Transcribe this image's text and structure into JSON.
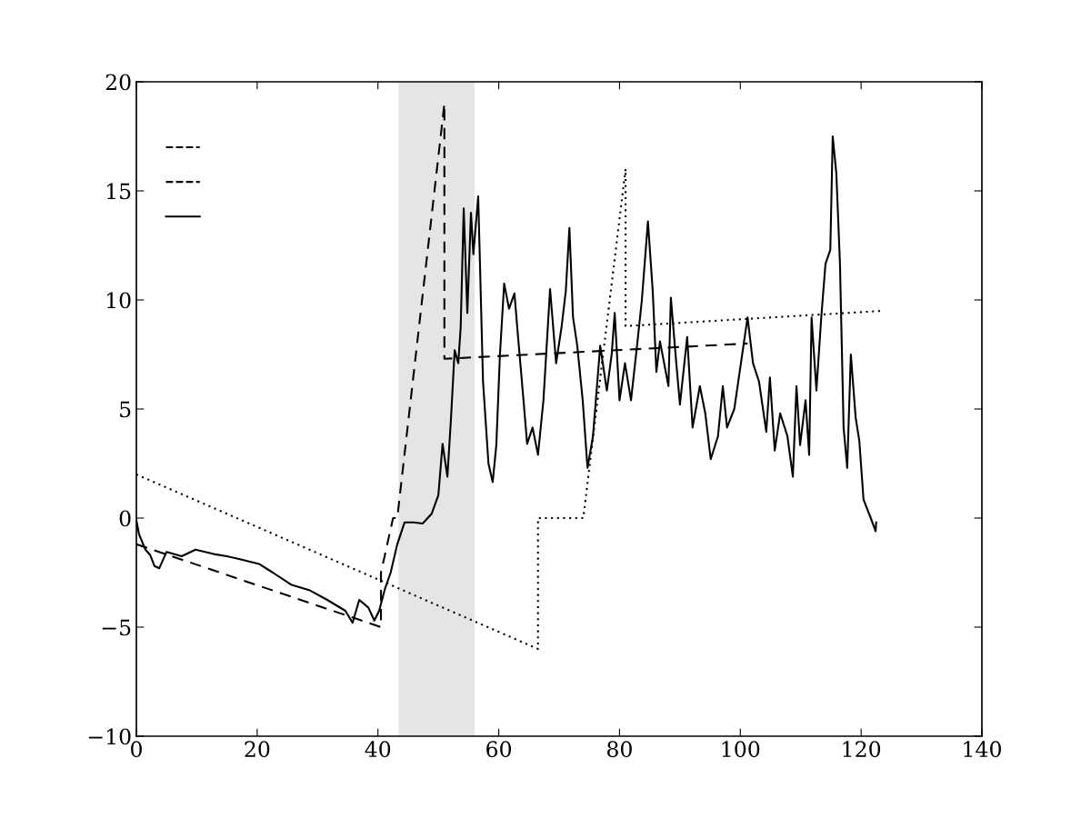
{
  "chart_data": {
    "type": "line",
    "xlim": [
      0,
      140
    ],
    "ylim": [
      -10,
      20
    ],
    "xticks": [
      0,
      20,
      40,
      60,
      80,
      100,
      120,
      140
    ],
    "yticks": [
      {
        "value": -10,
        "label": "−10"
      },
      {
        "value": -5,
        "label": "−5"
      },
      0,
      5,
      10,
      15,
      20
    ],
    "grid": false,
    "bands": [
      {
        "axis": "x",
        "from": 43.4,
        "to": 56.0,
        "color": "#e5e5e5"
      }
    ],
    "series": [
      {
        "color": "#000000",
        "line_style": "dashed",
        "x": [
          0,
          40.5,
          40.5,
          42.5,
          43.2,
          51.0,
          51.0,
          101.2
        ],
        "values": [
          -1.2,
          -5.0,
          -2.5,
          0,
          0,
          19.0,
          7.3,
          8.0
        ]
      },
      {
        "color": "#000000",
        "line_style": "dotted",
        "x": [
          0,
          66.5,
          66.5,
          74.0,
          81.0,
          81.0,
          123.5
        ],
        "values": [
          2.0,
          -6.0,
          0,
          0,
          16.0,
          8.8,
          9.5
        ]
      },
      {
        "color": "#000000",
        "line_style": "solid",
        "x": [
          0,
          0.45,
          1.5,
          2.3,
          3.0,
          3.8,
          5.0,
          7.5,
          9.8,
          12.8,
          15,
          17.3,
          20.3,
          22.6,
          25.6,
          28.6,
          31.6,
          34.6,
          35.8,
          36.9,
          38.4,
          39.4,
          40.2,
          41.1,
          42.1,
          43.2,
          44.4,
          45.9,
          47.4,
          48.9,
          50,
          50.7,
          51.5,
          52.1,
          52.7,
          53.3,
          53.7,
          54.2,
          54.8,
          55.4,
          55.8,
          56.6,
          57.4,
          58.3,
          59,
          59.6,
          60.2,
          60.9,
          61.7,
          62.6,
          63.2,
          64.1,
          64.7,
          65.6,
          66.5,
          67.4,
          68.5,
          69.5,
          70.4,
          71.1,
          71.7,
          72.3,
          73.0,
          73.9,
          74.7,
          75.6,
          76.8,
          77.9,
          78.7,
          79.2,
          80,
          80.9,
          81.9,
          82.9,
          83.7,
          84.7,
          85.5,
          86.1,
          86.7,
          88.1,
          88.5,
          89.4,
          90,
          91.2,
          92.1,
          93.3,
          94.2,
          95.1,
          96.3,
          97.1,
          97.8,
          99,
          100.1,
          101.2,
          102.1,
          103.1,
          104.3,
          104.9,
          105.7,
          106.6,
          107.8,
          108.7,
          109.3,
          109.9,
          110.8,
          111.4,
          111.8,
          112.6,
          113.4,
          114.1,
          114.9,
          115.3,
          115.9,
          116.5,
          117.1,
          117.7,
          118.3,
          119.1,
          119.7,
          120.4,
          121.6,
          122.4,
          122.5
        ],
        "values": [
          -0.1,
          -0.75,
          -1.45,
          -1.7,
          -2.2,
          -2.3,
          -1.55,
          -1.75,
          -1.45,
          -1.65,
          -1.75,
          -1.9,
          -2.1,
          -2.5,
          -3.05,
          -3.3,
          -3.75,
          -4.25,
          -4.8,
          -3.75,
          -4.1,
          -4.7,
          -4.25,
          -3.3,
          -2.5,
          -1.2,
          -0.2,
          -0.2,
          -0.25,
          0.2,
          1.05,
          3.4,
          1.9,
          4.6,
          7.7,
          7.1,
          8.75,
          14.2,
          9.4,
          14.0,
          12.1,
          14.75,
          6.25,
          2.5,
          1.65,
          3.35,
          7.5,
          10.75,
          9.6,
          10.3,
          8.3,
          5.4,
          3.4,
          4.15,
          2.9,
          5.4,
          10.5,
          7.1,
          8.75,
          10.4,
          13.3,
          9.2,
          7.9,
          5.4,
          2.3,
          3.75,
          7.9,
          5.85,
          7.5,
          9.4,
          5.4,
          7.1,
          5.4,
          7.9,
          10,
          13.6,
          10.4,
          6.7,
          8.1,
          6.05,
          10.1,
          7.1,
          5.2,
          8.3,
          4.15,
          6.05,
          4.8,
          2.7,
          3.75,
          6.05,
          4.15,
          5,
          7.1,
          9.2,
          7.1,
          6.25,
          3.95,
          6.45,
          3.1,
          4.8,
          3.75,
          1.9,
          6.05,
          3.35,
          5.4,
          2.9,
          9.2,
          5.85,
          9.2,
          11.65,
          12.3,
          17.5,
          15.8,
          11.65,
          4.15,
          2.3,
          7.5,
          4.6,
          3.55,
          0.85,
          0,
          -0.6,
          -0.2
        ]
      }
    ]
  }
}
